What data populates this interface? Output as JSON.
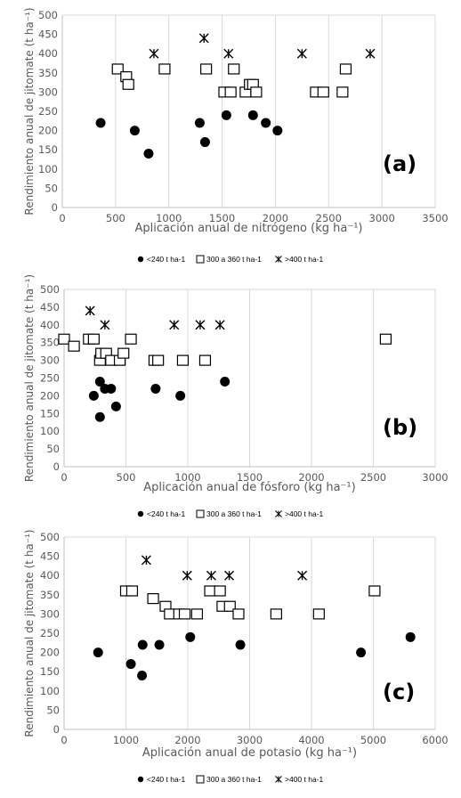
{
  "charts": [
    {
      "key": "a",
      "panel_label": "(a)",
      "xlabel": "Aplicación anual de nitrógeno (kg ha⁻¹)",
      "ylabel": "Rendimiento anual de jitomate (t ha⁻¹)",
      "xlim": [
        0,
        3500
      ],
      "ylim": [
        0,
        500
      ],
      "xticks": [
        0,
        500,
        1000,
        1500,
        2000,
        2500,
        3000,
        3500
      ],
      "yticks": [
        0,
        50,
        100,
        150,
        200,
        250,
        300,
        350,
        400,
        450,
        500
      ],
      "legend": [
        "<240 t ha-1",
        "300 a 360 t ha-1",
        ">400 t ha-1"
      ]
    },
    {
      "key": "b",
      "panel_label": "(b)",
      "xlabel": "Aplicación anual de fósforo (kg ha⁻¹)",
      "ylabel": "Rendimiento anual de jitomate (t ha⁻¹)",
      "xlim": [
        0,
        3000
      ],
      "ylim": [
        0,
        500
      ],
      "xticks": [
        0,
        500,
        1000,
        1500,
        2000,
        2500,
        3000
      ],
      "yticks": [
        0,
        50,
        100,
        150,
        200,
        250,
        300,
        350,
        400,
        450,
        500
      ],
      "legend": [
        "<240 t ha-1",
        "300 a 360 t ha-1",
        ">400 t ha-1"
      ]
    },
    {
      "key": "c",
      "panel_label": "(c)",
      "xlabel": "Aplicación anual de potasio (kg ha⁻¹)",
      "ylabel": "Rendimiento anual de jitomate (t ha⁻¹)",
      "xlim": [
        0,
        6000
      ],
      "ylim": [
        0,
        500
      ],
      "xticks": [
        0,
        1000,
        2000,
        3000,
        4000,
        5000,
        6000
      ],
      "yticks": [
        0,
        50,
        100,
        150,
        200,
        250,
        300,
        350,
        400,
        450,
        500
      ],
      "legend": [
        "<240 t ha-1",
        "300 a 360 t ha-1",
        ">400 t ha-1"
      ]
    }
  ],
  "chart_data": [
    {
      "type": "scatter",
      "panel": "(a)",
      "xlabel": "Aplicación anual de nitrógeno (kg ha⁻¹)",
      "ylabel": "Rendimiento anual de jitomate (t ha⁻¹)",
      "xlim": [
        0,
        3500
      ],
      "ylim": [
        0,
        500
      ],
      "grid": "vertical",
      "legend_position": "bottom",
      "series": [
        {
          "name": "<240 t ha-1",
          "marker": "filled-circle",
          "points": [
            [
              360,
              220
            ],
            [
              680,
              200
            ],
            [
              810,
              140
            ],
            [
              1290,
              220
            ],
            [
              1340,
              170
            ],
            [
              1540,
              240
            ],
            [
              1790,
              240
            ],
            [
              1910,
              220
            ],
            [
              2020,
              200
            ]
          ]
        },
        {
          "name": "300 a 360 t ha-1",
          "marker": "open-square",
          "points": [
            [
              520,
              360
            ],
            [
              600,
              340
            ],
            [
              620,
              320
            ],
            [
              960,
              360
            ],
            [
              1350,
              360
            ],
            [
              1520,
              300
            ],
            [
              1580,
              300
            ],
            [
              1610,
              360
            ],
            [
              1720,
              300
            ],
            [
              1760,
              320
            ],
            [
              1790,
              320
            ],
            [
              1820,
              300
            ],
            [
              2380,
              300
            ],
            [
              2450,
              300
            ],
            [
              2630,
              300
            ],
            [
              2660,
              360
            ]
          ]
        },
        {
          "name": ">400 t ha-1",
          "marker": "asterisk",
          "points": [
            [
              860,
              400
            ],
            [
              1330,
              440
            ],
            [
              1560,
              400
            ],
            [
              2250,
              400
            ],
            [
              2890,
              400
            ]
          ]
        }
      ]
    },
    {
      "type": "scatter",
      "panel": "(b)",
      "xlabel": "Aplicación anual de fósforo (kg ha⁻¹)",
      "ylabel": "Rendimiento anual de jitomate (t ha⁻¹)",
      "xlim": [
        0,
        3000
      ],
      "ylim": [
        0,
        500
      ],
      "grid": "vertical",
      "legend_position": "bottom",
      "series": [
        {
          "name": "<240 t ha-1",
          "marker": "filled-circle",
          "points": [
            [
              240,
              200
            ],
            [
              290,
              140
            ],
            [
              290,
              240
            ],
            [
              330,
              220
            ],
            [
              380,
              220
            ],
            [
              420,
              170
            ],
            [
              740,
              220
            ],
            [
              940,
              200
            ],
            [
              1300,
              240
            ]
          ]
        },
        {
          "name": "300 a 360 t ha-1",
          "marker": "open-square",
          "points": [
            [
              0,
              360
            ],
            [
              80,
              340
            ],
            [
              200,
              360
            ],
            [
              240,
              360
            ],
            [
              290,
              300
            ],
            [
              300,
              320
            ],
            [
              340,
              320
            ],
            [
              380,
              300
            ],
            [
              450,
              300
            ],
            [
              480,
              320
            ],
            [
              540,
              360
            ],
            [
              730,
              300
            ],
            [
              760,
              300
            ],
            [
              960,
              300
            ],
            [
              1140,
              300
            ],
            [
              2600,
              360
            ]
          ]
        },
        {
          "name": ">400 t ha-1",
          "marker": "asterisk",
          "points": [
            [
              210,
              440
            ],
            [
              330,
              400
            ],
            [
              890,
              400
            ],
            [
              1100,
              400
            ],
            [
              1260,
              400
            ]
          ]
        }
      ]
    },
    {
      "type": "scatter",
      "panel": "(c)",
      "xlabel": "Aplicación anual de potasio (kg ha⁻¹)",
      "ylabel": "Rendimiento anual de jitomate (t ha⁻¹)",
      "xlim": [
        0,
        6000
      ],
      "ylim": [
        0,
        500
      ],
      "grid": "vertical",
      "legend_position": "bottom",
      "series": [
        {
          "name": "<240 t ha-1",
          "marker": "filled-circle",
          "points": [
            [
              550,
              200
            ],
            [
              1080,
              170
            ],
            [
              1260,
              140
            ],
            [
              1270,
              220
            ],
            [
              1540,
              220
            ],
            [
              2040,
              240
            ],
            [
              2850,
              220
            ],
            [
              4800,
              200
            ],
            [
              5600,
              240
            ]
          ]
        },
        {
          "name": "300 a 360 t ha-1",
          "marker": "open-square",
          "points": [
            [
              1000,
              360
            ],
            [
              1100,
              360
            ],
            [
              1440,
              340
            ],
            [
              1640,
              320
            ],
            [
              1710,
              300
            ],
            [
              1860,
              300
            ],
            [
              1950,
              300
            ],
            [
              2150,
              300
            ],
            [
              2360,
              360
            ],
            [
              2520,
              360
            ],
            [
              2560,
              320
            ],
            [
              2680,
              320
            ],
            [
              2820,
              300
            ],
            [
              3430,
              300
            ],
            [
              4120,
              300
            ],
            [
              5020,
              360
            ]
          ]
        },
        {
          "name": ">400 t ha-1",
          "marker": "asterisk",
          "points": [
            [
              1330,
              440
            ],
            [
              1990,
              400
            ],
            [
              2380,
              400
            ],
            [
              2670,
              400
            ],
            [
              3850,
              400
            ]
          ]
        }
      ]
    }
  ]
}
